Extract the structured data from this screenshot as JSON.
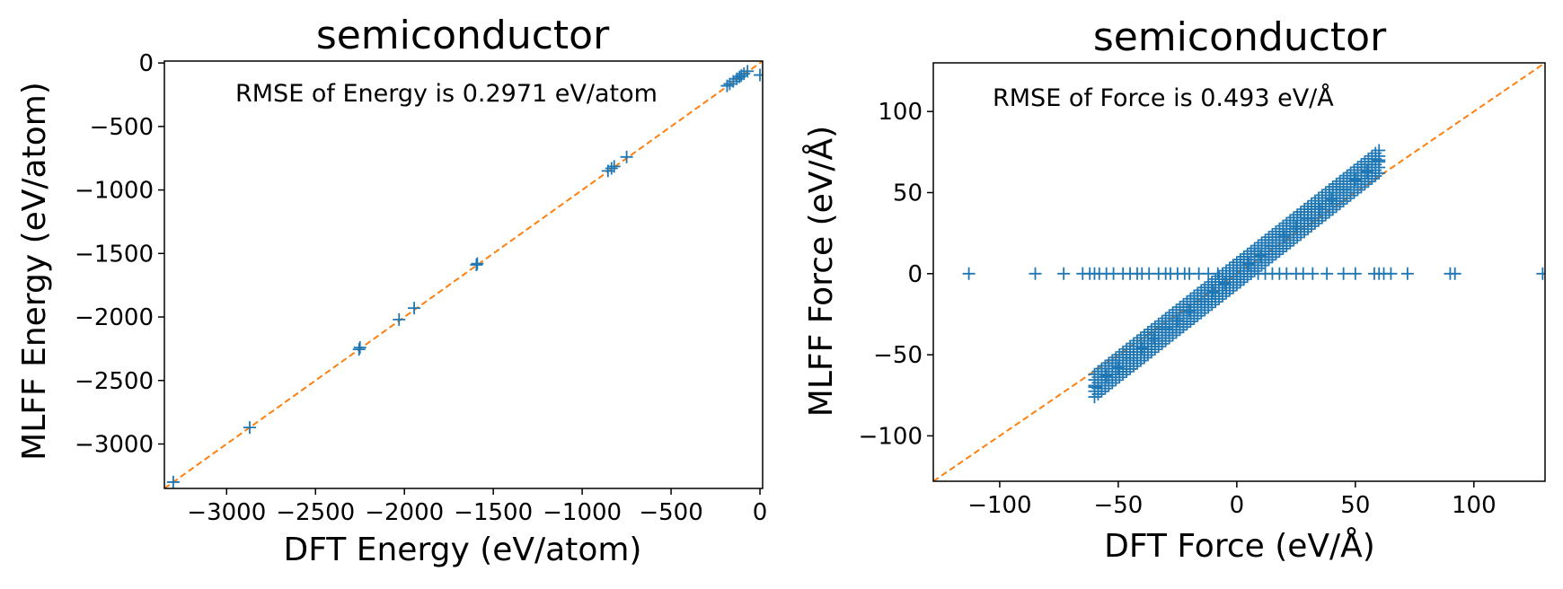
{
  "chart_data": [
    {
      "type": "scatter",
      "title": "semiconductor",
      "xlabel": "DFT Energy (eV/atom)",
      "ylabel": "MLFF Energy (eV/atom)",
      "xlim": [
        -3350,
        15
      ],
      "ylim": [
        -3350,
        15
      ],
      "xticks": [
        -3000,
        -2500,
        -2000,
        -1500,
        -1000,
        -500,
        0
      ],
      "xtick_labels": [
        "−3000",
        "−2500",
        "−2000",
        "−1500",
        "−1000",
        "−500",
        "0"
      ],
      "yticks": [
        0,
        -500,
        -1000,
        -1500,
        -2000,
        -2500,
        -3000
      ],
      "ytick_labels": [
        "0",
        "−500",
        "−1000",
        "−1500",
        "−2000",
        "−2500",
        "−3000"
      ],
      "annotation": "RMSE of Energy is 0.2971 eV/atom",
      "marker": "+",
      "grid": false,
      "colors": {
        "points": "#1f77b4",
        "reference_line": "#ff7f0e"
      },
      "reference_line": {
        "style": "dashed",
        "from": [
          -3350,
          -3350
        ],
        "to": [
          15,
          15
        ]
      },
      "points": {
        "x": [
          -3300,
          -2870,
          -2255,
          -2250,
          -2030,
          -1945,
          -1595,
          -1590,
          -855,
          -835,
          -820,
          -750,
          -185,
          -170,
          -150,
          -130,
          -115,
          -105,
          -90,
          -70,
          0
        ],
        "y": [
          -3300,
          -2870,
          -2255,
          -2240,
          -2020,
          -1930,
          -1590,
          -1580,
          -850,
          -830,
          -815,
          -740,
          -180,
          -165,
          -145,
          -125,
          -110,
          -100,
          -85,
          -65,
          -95
        ]
      }
    },
    {
      "type": "scatter",
      "title": "semiconductor",
      "xlabel": "DFT Force (eV/Å)",
      "ylabel": "MLFF Force (eV/Å)",
      "xlim": [
        -128,
        130
      ],
      "ylim": [
        -128,
        130
      ],
      "xticks": [
        -100,
        -50,
        0,
        50,
        100
      ],
      "xtick_labels": [
        "−100",
        "−50",
        "0",
        "50",
        "100"
      ],
      "yticks": [
        100,
        50,
        0,
        -50,
        -100
      ],
      "ytick_labels": [
        "100",
        "50",
        "0",
        "−50",
        "−100"
      ],
      "annotation": "RMSE of Force is 0.493 eV/Å",
      "marker": "+",
      "grid": false,
      "colors": {
        "points": "#1f77b4",
        "reference_line": "#ff7f0e"
      },
      "reference_line": {
        "style": "dashed",
        "from": [
          -128,
          -128
        ],
        "to": [
          130,
          130
        ]
      },
      "points_description_series": {
        "band_x_start": -60,
        "band_x_end": 60,
        "band_slope": 1.15,
        "band_halfwidth": 7
      },
      "points": {
        "x": [
          -60,
          -55,
          -50,
          -45,
          -40,
          -35,
          -30,
          -25,
          -20,
          -15,
          -10,
          -5,
          0,
          5,
          10,
          15,
          20,
          25,
          30,
          35,
          40,
          45,
          50,
          55,
          60,
          -113,
          -85,
          -73,
          -65,
          -62,
          -60,
          -58,
          -55,
          -52,
          -48,
          -45,
          -42,
          -40,
          -37,
          -33,
          -30,
          -28,
          -25,
          -22,
          -20,
          -16,
          -12,
          -8,
          6,
          9,
          12,
          15,
          18,
          21,
          25,
          28,
          32,
          38,
          45,
          50,
          58,
          60,
          62,
          65,
          72,
          90,
          92,
          129
        ],
        "y": [
          -70,
          -63,
          -58,
          -52,
          -46,
          -40,
          -34,
          -29,
          -23,
          -17,
          -11,
          -6,
          0,
          6,
          11,
          17,
          23,
          29,
          34,
          40,
          46,
          52,
          58,
          63,
          70,
          0,
          0,
          0,
          0,
          0,
          0,
          0,
          0,
          0,
          0,
          0,
          0,
          0,
          0,
          0,
          0,
          0,
          0,
          0,
          0,
          0,
          0,
          0,
          0,
          0,
          0,
          0,
          0,
          0,
          0,
          0,
          0,
          0,
          0,
          0,
          0,
          0,
          0,
          0,
          0,
          0,
          0,
          0
        ]
      }
    }
  ]
}
